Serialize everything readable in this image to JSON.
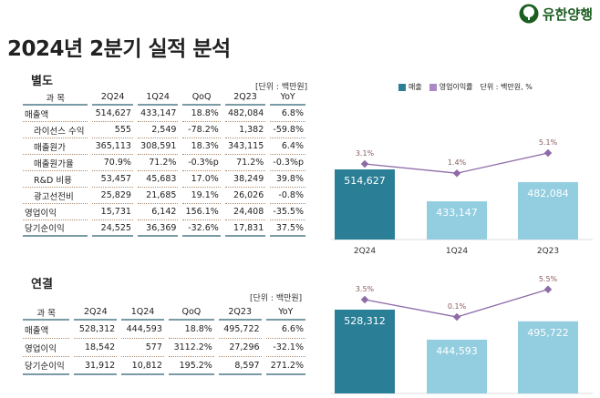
{
  "title": "2024년 2분기 실적 분석",
  "logo": "유한양행",
  "colors": {
    "bar_current": "#2a7f97",
    "bar_other": "#92cde0",
    "line": "#8e6aa8"
  },
  "standalone": {
    "heading": "별도",
    "unit": "[단위 : 백만원]",
    "columns": [
      "과 목",
      "2Q24",
      "1Q24",
      "QoQ",
      "2Q23",
      "YoY"
    ],
    "rows": [
      {
        "label": "매출액",
        "indent": false,
        "values": [
          "514,627",
          "433,147",
          "18.8%",
          "482,084",
          "6.8%"
        ]
      },
      {
        "label": "라이선스 수익",
        "indent": true,
        "values": [
          "555",
          "2,549",
          "-78.2%",
          "1,382",
          "-59.8%"
        ]
      },
      {
        "label": "매출원가",
        "indent": true,
        "values": [
          "365,113",
          "308,591",
          "18.3%",
          "343,115",
          "6.4%"
        ]
      },
      {
        "label": "매출원가율",
        "indent": true,
        "values": [
          "70.9%",
          "71.2%",
          "-0.3%p",
          "71.2%",
          "-0.3%p"
        ]
      },
      {
        "label": "R&D 비용",
        "indent": true,
        "values": [
          "53,457",
          "45,683",
          "17.0%",
          "38,249",
          "39.8%"
        ]
      },
      {
        "label": "광고선전비",
        "indent": true,
        "values": [
          "25,829",
          "21,685",
          "19.1%",
          "26,026",
          "-0.8%"
        ]
      },
      {
        "label": "영업이익",
        "indent": false,
        "values": [
          "15,731",
          "6,142",
          "156.1%",
          "24,408",
          "-35.5%"
        ]
      },
      {
        "label": "당기순이익",
        "indent": false,
        "values": [
          "24,525",
          "36,369",
          "-32.6%",
          "17,831",
          "37.5%"
        ]
      }
    ]
  },
  "consolidated": {
    "heading": "연결",
    "unit": "[단위 : 백만원]",
    "columns": [
      "과 목",
      "2Q24",
      "1Q24",
      "QoQ",
      "2Q23",
      "YoY"
    ],
    "rows": [
      {
        "label": "매출액",
        "indent": false,
        "values": [
          "528,312",
          "444,593",
          "18.8%",
          "495,722",
          "6.6%"
        ]
      },
      {
        "label": "영업이익",
        "indent": false,
        "values": [
          "18,542",
          "577",
          "3112.2%",
          "27,296",
          "-32.1%"
        ]
      },
      {
        "label": "당기순이익",
        "indent": false,
        "values": [
          "31,912",
          "10,812",
          "195.2%",
          "8,597",
          "271.2%"
        ]
      }
    ]
  },
  "chart_data": [
    {
      "type": "bar+line",
      "legend": [
        "매출",
        "영업이익률"
      ],
      "unit_note": "단위 : 백만원, %",
      "legend_position": "top",
      "categories": [
        "2Q24",
        "1Q24",
        "2Q23"
      ],
      "series": [
        {
          "name": "매출",
          "values": [
            514627,
            433147,
            482084
          ],
          "labels": [
            "514,627",
            "433,147",
            "482,084"
          ]
        },
        {
          "name": "영업이익률",
          "values": [
            3.1,
            1.4,
            5.1
          ],
          "labels": [
            "3.1%",
            "1.4%",
            "5.1%"
          ]
        }
      ],
      "ylim": [
        335600,
        726300
      ],
      "grid": false
    },
    {
      "type": "bar+line",
      "categories": [
        "2Q24",
        "1Q24",
        "2Q23"
      ],
      "series": [
        {
          "name": "매출",
          "values": [
            528312,
            444593,
            495722
          ],
          "labels": [
            "528,312",
            "444,593",
            "495,722"
          ]
        },
        {
          "name": "영업이익률",
          "values": [
            3.5,
            0.1,
            5.5
          ],
          "labels": [
            "3.5%",
            "0.1%",
            "5.5%"
          ]
        }
      ],
      "ylim": [
        294800,
        629800
      ],
      "grid": false
    }
  ]
}
